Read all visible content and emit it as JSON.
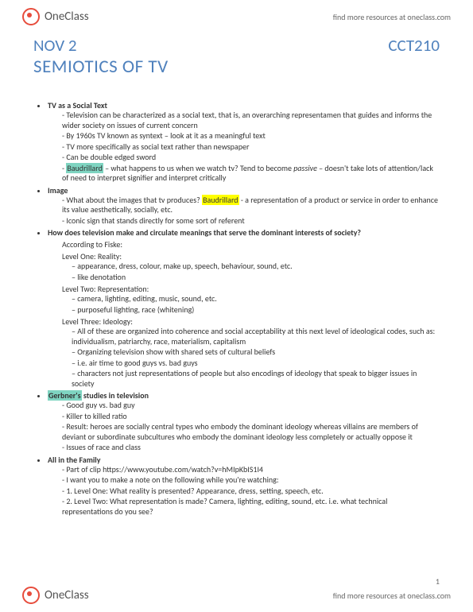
{
  "header": {
    "brand": "OneClass",
    "tagline": "find more resources at oneclass.com"
  },
  "meta": {
    "date": "NOV 2",
    "course": "CCT210",
    "title": "SEMIOTICS OF TV"
  },
  "s1": {
    "heading": "TV as a Social Text",
    "b1": "Television can be characterized as a social text, that is, an overarching representamen that guides and informs the wider society on issues of current concern",
    "b2": "By 1960s TV known as syntext – look at it as a meaningful text",
    "b3": "TV more specifically as social text rather than newspaper",
    "b4": "Can be double edged sword",
    "b5a": "Baudrillard",
    "b5b": " – what happens to us when we watch tv? Tend to become ",
    "b5c": "passive",
    "b5d": " – doesn't take lots of attention/lack of need to interpret signifier and interpret critically"
  },
  "s2": {
    "heading": "Image",
    "b1a": "What about the images that tv produces? ",
    "b1b": "Baudrillard",
    "b1c": " - a representation of a product or service in order to enhance its value aesthetically, socially, etc.",
    "b2": "Iconic sign that stands directly for some sort of referent"
  },
  "s3": {
    "heading": "How does television make and circulate meanings that serve the dominant interests of society?",
    "intro": "According to Fiske:",
    "l1": "Level One:  Reality:",
    "l1a": "appearance, dress, colour, make up, speech, behaviour, sound, etc.",
    "l1b": "like denotation",
    "l2": "Level Two:  Representation:",
    "l2a": "camera, lighting, editing, music, sound, etc.",
    "l2b": "purposeful lighting, race (whitening)",
    "l3": "Level Three:  Ideology:",
    "l3a": "All of these are organized into coherence and social acceptability at this next level of ideological codes, such as:  individualism, patriarchy, race, materialism, capitalism",
    "l3b": "Organizing television show with shared sets of cultural beliefs",
    "l3c": "i.e. air time to good guys vs. bad guys",
    "l3d": "characters not just representations of people but also encodings of ideology that speak to bigger issues in society"
  },
  "s4": {
    "heading_a": "Gerbner's",
    "heading_b": " studies in television",
    "b1": "Good guy vs. bad guy",
    "b2": "Killer to killed ratio",
    "b3": "Result:  heroes are socially central types who embody the dominant ideology whereas villains are members of deviant or subordinate subcultures who embody the dominant ideology less completely or actually oppose it",
    "b4": "Issues of race and class"
  },
  "s5": {
    "heading": "All in the Family",
    "b1": "Part of clip https://www.youtube.com/watch?v=hMIpKbIS1I4",
    "b2": "I want you to make a note on the following while you're watching:",
    "b3": "1.   Level One:  What reality is presented?   Appearance, dress, setting, speech, etc.",
    "b4": "2.   Level Two:  What representation is made?   Camera, lighting, editing, sound, etc. i.e. what technical representations do you see?"
  },
  "footer": {
    "pagenum": "1",
    "tagline": "find more resources at oneclass.com"
  }
}
